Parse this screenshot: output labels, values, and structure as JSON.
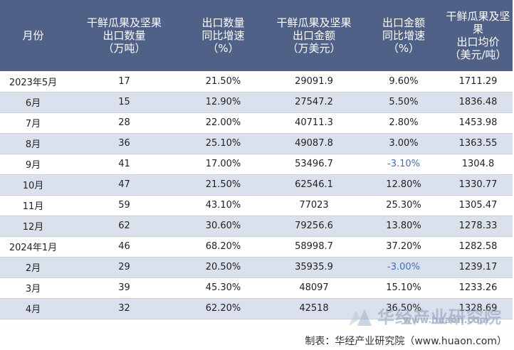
{
  "table": {
    "headers": [
      [
        "月份"
      ],
      [
        "干鲜瓜果及坚果",
        "出口数量",
        "（万吨）"
      ],
      [
        "出口数量",
        "同比增速",
        "（%）"
      ],
      [
        "干鲜瓜果及坚果",
        "出口金额",
        "（万美元）"
      ],
      [
        "出口金额",
        "同比增速",
        "（%）"
      ],
      [
        "干鲜瓜果及坚果",
        "出口均价",
        "（美元/吨）"
      ]
    ],
    "rows": [
      [
        "2023年5月",
        "17",
        "21.50%",
        "29091.9",
        "9.60%",
        "1711.29"
      ],
      [
        "6月",
        "15",
        "12.90%",
        "27547.2",
        "5.50%",
        "1836.48"
      ],
      [
        "7月",
        "28",
        "22.00%",
        "40711.3",
        "2.80%",
        "1453.98"
      ],
      [
        "8月",
        "36",
        "25.10%",
        "49087.8",
        "3.00%",
        "1363.55"
      ],
      [
        "9月",
        "41",
        "17.00%",
        "53496.7",
        "-3.10%",
        "1304.8"
      ],
      [
        "10月",
        "47",
        "21.50%",
        "62546.1",
        "12.80%",
        "1330.77"
      ],
      [
        "11月",
        "59",
        "43.10%",
        "77023",
        "25.30%",
        "1305.47"
      ],
      [
        "12月",
        "62",
        "30.60%",
        "79256.6",
        "13.80%",
        "1278.33"
      ],
      [
        "2024年1月",
        "46",
        "68.20%",
        "58998.7",
        "37.20%",
        "1282.58"
      ],
      [
        "2月",
        "29",
        "20.50%",
        "35935.9",
        "-3.00%",
        "1239.17"
      ],
      [
        "3月",
        "39",
        "45.30%",
        "48097",
        "15.10%",
        "1233.26"
      ],
      [
        "4月",
        "32",
        "62.20%",
        "42518",
        "36.50%",
        "1328.69"
      ]
    ]
  },
  "footer": {
    "source": "制表：华经产业研究院（www.huaon.com）"
  },
  "watermark": {
    "text": "华经产业研究院",
    "url": "www.huaon.com"
  },
  "colors": {
    "header_bg": "#4f6187",
    "stripe": "#dbe1ec",
    "negative": "#3a6fc2"
  }
}
